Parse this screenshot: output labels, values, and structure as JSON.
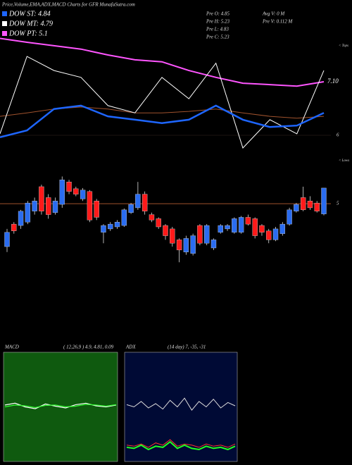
{
  "chart_data": {
    "type": "candlestick",
    "title": "Price,Volume,EMA,ADX,MACD Charts for GFR MunafaSutra.com",
    "legend": [
      "DOW ST: 4.84",
      "DOW MT: 4.79",
      "DOW PT: 5.1"
    ],
    "legend_colors": [
      "#1e66ff",
      "#ffffff",
      "#ff55ff"
    ],
    "info": [
      "Pre  O: 4.85",
      "Pre  H: 5.23",
      "Pre  L: 4.83",
      "Pre  C: 5.23"
    ],
    "volume_info": [
      "Avg V: 0  M",
      "Pre  V: 0.112  M"
    ],
    "tops_label": "< Tops",
    "lows_label": "< Lows",
    "open": [
      4.37,
      4.7,
      4.68,
      4.73,
      4.89,
      5.25,
      5.09,
      4.87,
      4.99,
      5.32,
      5.22,
      5.07,
      5.18,
      5.04,
      4.58,
      4.63,
      4.66,
      4.68,
      4.87,
      4.94,
      5.14,
      4.84,
      4.78,
      4.68,
      4.63,
      4.47,
      4.29,
      4.27,
      4.68,
      4.42,
      4.35,
      4.58,
      4.63,
      4.58,
      4.58,
      4.8,
      4.78,
      4.68,
      4.6,
      4.47,
      4.56,
      4.7,
      4.89,
      5.09,
      5.04,
      5.01,
      4.85
    ],
    "high": [
      4.63,
      4.73,
      4.91,
      5.04,
      5.09,
      5.28,
      5.14,
      5.09,
      5.4,
      5.35,
      5.25,
      5.23,
      5.2,
      5.07,
      4.7,
      4.73,
      4.76,
      4.93,
      5.01,
      5.32,
      5.18,
      4.87,
      4.8,
      4.7,
      4.66,
      4.49,
      4.53,
      4.56,
      4.7,
      4.7,
      4.49,
      4.7,
      4.7,
      4.8,
      4.82,
      4.84,
      4.8,
      4.7,
      4.63,
      4.66,
      4.73,
      4.94,
      5.01,
      5.25,
      5.11,
      5.04,
      5.23
    ],
    "low": [
      4.29,
      4.56,
      4.63,
      4.7,
      4.84,
      4.84,
      4.78,
      4.84,
      4.94,
      5.14,
      5.11,
      5.04,
      4.73,
      4.76,
      4.42,
      4.6,
      4.63,
      4.66,
      4.85,
      4.91,
      4.84,
      4.73,
      4.63,
      4.47,
      4.37,
      4.14,
      4.25,
      4.24,
      4.39,
      4.39,
      4.32,
      4.56,
      4.6,
      4.56,
      4.56,
      4.68,
      4.49,
      4.53,
      4.42,
      4.45,
      4.53,
      4.68,
      4.87,
      4.89,
      4.91,
      4.87,
      4.83
    ],
    "close": [
      4.58,
      4.6,
      4.89,
      5.01,
      5.04,
      4.89,
      4.84,
      5.04,
      5.35,
      5.18,
      5.14,
      5.2,
      4.76,
      4.8,
      4.68,
      4.7,
      4.73,
      4.91,
      4.99,
      5.14,
      4.89,
      4.76,
      4.66,
      4.53,
      4.42,
      4.32,
      4.49,
      4.53,
      4.42,
      4.68,
      4.47,
      4.68,
      4.68,
      4.78,
      4.8,
      4.7,
      4.53,
      4.58,
      4.47,
      4.63,
      4.7,
      4.91,
      4.99,
      4.91,
      4.94,
      4.89,
      5.23
    ],
    "up_color": "#2a6cf0",
    "down_color": "#ff1a1a",
    "ylim": [
      4.06,
      5.56
    ],
    "yticks": [
      5
    ],
    "upper_ylim": [
      5.45,
      8.2
    ],
    "upper_yticks": [
      6
    ],
    "upper_last_label": {
      "value": 7.1,
      "label": "7.10"
    },
    "overlays": [
      {
        "color": "#ff55ff",
        "values": [
          7.99,
          7.91,
          7.84,
          7.77,
          7.65,
          7.55,
          7.51,
          7.33,
          7.19,
          7.07,
          7.04,
          7.01,
          7.1
        ]
      },
      {
        "color": "#a0522d",
        "values": [
          6.39,
          6.46,
          6.54,
          6.58,
          6.54,
          6.46,
          6.46,
          6.49,
          6.54,
          6.46,
          6.39,
          6.35,
          6.39
        ]
      },
      {
        "color": "#ffffff",
        "values": [
          6.03,
          7.62,
          7.33,
          7.19,
          6.61,
          6.46,
          7.19,
          6.75,
          7.48,
          5.74,
          6.32,
          6.03,
          7.33
        ]
      },
      {
        "color": "#1e66ff",
        "values": [
          5.96,
          6.1,
          6.54,
          6.61,
          6.39,
          6.32,
          6.25,
          6.32,
          6.61,
          6.32,
          6.17,
          6.2,
          6.46
        ]
      }
    ],
    "macd": {
      "title": "MACD",
      "params": "( 12,26,9 ) 4.9, 4.81, 0.09",
      "ylim": [
        -1.5,
        1.5
      ],
      "series": [
        {
          "color": "#ffffff",
          "values": [
            0.05,
            0.1,
            0.0,
            -0.05,
            0.08,
            0.02,
            -0.03,
            0.06,
            0.1,
            0.03,
            0.0,
            0.05
          ]
        },
        {
          "color": "#33ff33",
          "values": [
            0.0,
            0.05,
            0.03,
            -0.02,
            0.04,
            0.05,
            0.0,
            0.02,
            0.07,
            0.05,
            0.02,
            0.06
          ]
        }
      ]
    },
    "adx": {
      "title": "ADX",
      "params": "(14  day) 7,  -35,  -31",
      "ylim": [
        0,
        100
      ],
      "series": [
        {
          "color": "#dddddd",
          "values": [
            52,
            50,
            55,
            49,
            53,
            48,
            56,
            50,
            58,
            47,
            55,
            50,
            57,
            49,
            54,
            51
          ]
        },
        {
          "color": "#ff3030",
          "values": [
            15,
            14,
            16,
            13,
            17,
            15,
            20,
            14,
            16,
            15,
            13,
            16,
            14,
            15,
            13,
            16
          ]
        },
        {
          "color": "#22ff22",
          "values": [
            13,
            12,
            15,
            11,
            14,
            13,
            18,
            12,
            15,
            12,
            11,
            14,
            12,
            13,
            11,
            14
          ]
        }
      ]
    }
  }
}
